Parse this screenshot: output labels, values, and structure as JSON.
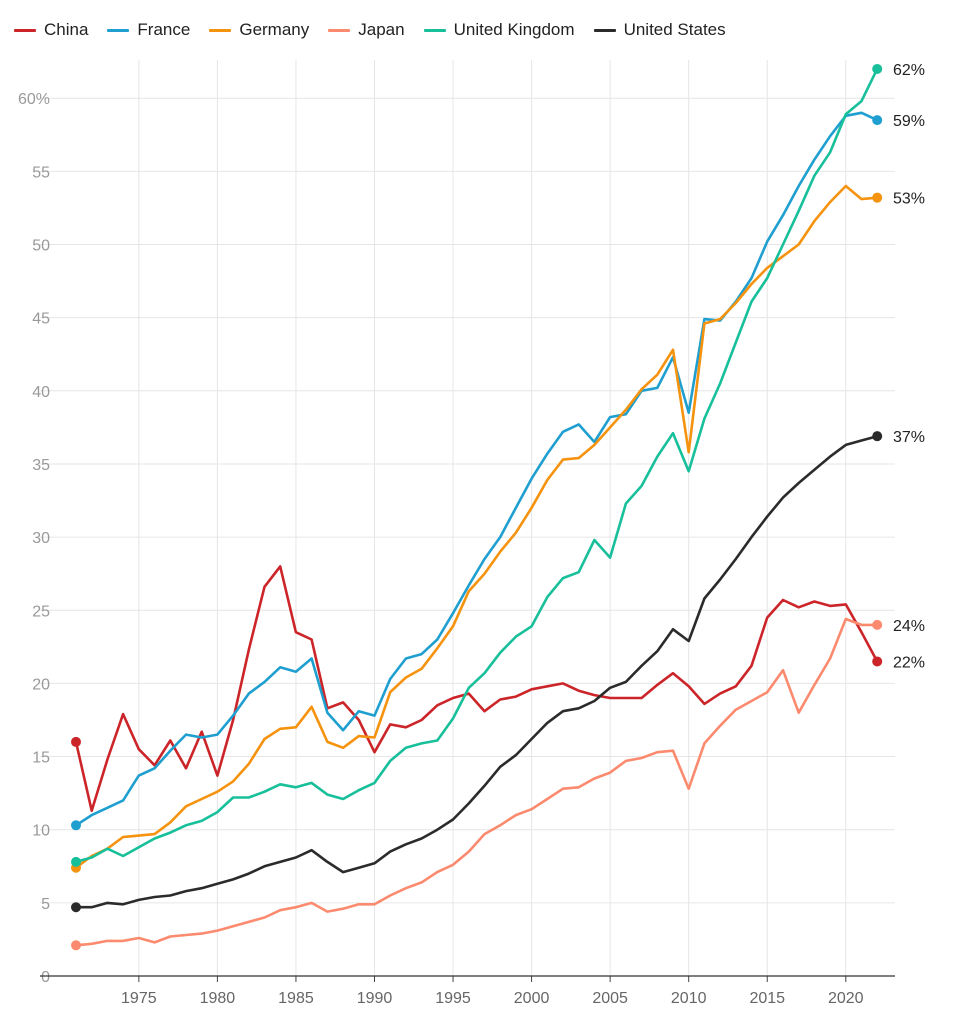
{
  "chart_data": {
    "type": "line",
    "title": "",
    "xlabel": "",
    "ylabel": "",
    "ylim": [
      0,
      60
    ],
    "xlim": [
      1971,
      2022
    ],
    "y_ticks": [
      "0",
      "5",
      "10",
      "15",
      "20",
      "25",
      "30",
      "35",
      "40",
      "45",
      "50",
      "55",
      "60%"
    ],
    "x_ticks": [
      "1975",
      "1980",
      "1985",
      "1990",
      "1995",
      "2000",
      "2005",
      "2010",
      "2015",
      "2020"
    ],
    "grid": true,
    "legend_position": "top-left",
    "x": [
      1971,
      1972,
      1973,
      1974,
      1975,
      1976,
      1977,
      1978,
      1979,
      1980,
      1981,
      1982,
      1983,
      1984,
      1985,
      1986,
      1987,
      1988,
      1989,
      1990,
      1991,
      1992,
      1993,
      1994,
      1995,
      1996,
      1997,
      1998,
      1999,
      2000,
      2001,
      2002,
      2003,
      2004,
      2005,
      2006,
      2007,
      2008,
      2009,
      2010,
      2011,
      2012,
      2013,
      2014,
      2015,
      2016,
      2017,
      2018,
      2019,
      2020,
      2021,
      2022
    ],
    "series": [
      {
        "name": "China",
        "color": "#cc2529",
        "end_label": "22%",
        "values": [
          16.0,
          11.3,
          14.8,
          17.9,
          15.5,
          14.4,
          16.1,
          14.2,
          16.7,
          13.7,
          17.5,
          22.3,
          26.6,
          28.0,
          23.5,
          23.0,
          18.3,
          18.7,
          17.5,
          15.3,
          17.2,
          17.0,
          17.5,
          18.5,
          19.0,
          19.3,
          18.1,
          18.9,
          19.1,
          19.6,
          19.8,
          20.0,
          19.5,
          19.2,
          19.0,
          19.0,
          19.0,
          19.9,
          20.7,
          19.8,
          18.6,
          19.3,
          19.8,
          21.2,
          24.5,
          25.7,
          25.2,
          25.6,
          25.3,
          25.4,
          23.5,
          21.5
        ]
      },
      {
        "name": "France",
        "color": "#1f9fd0",
        "end_label": "59%",
        "values": [
          10.3,
          11.0,
          11.5,
          12.0,
          13.7,
          14.2,
          15.4,
          16.5,
          16.3,
          16.5,
          17.8,
          19.3,
          20.1,
          21.1,
          20.8,
          21.7,
          18.0,
          16.8,
          18.1,
          17.8,
          20.3,
          21.7,
          22.0,
          23.0,
          24.8,
          26.7,
          28.5,
          30.0,
          32.0,
          34.0,
          35.7,
          37.2,
          37.7,
          36.5,
          38.2,
          38.4,
          40.0,
          40.2,
          42.3,
          38.5,
          44.9,
          44.8,
          46.1,
          47.7,
          50.2,
          52.0,
          54.0,
          55.8,
          57.4,
          58.8,
          59.0,
          58.5
        ]
      },
      {
        "name": "Germany",
        "color": "#f5930f",
        "end_label": "53%",
        "values": [
          7.4,
          8.2,
          8.7,
          9.5,
          9.6,
          9.7,
          10.5,
          11.6,
          12.1,
          12.6,
          13.3,
          14.5,
          16.2,
          16.9,
          17.0,
          18.4,
          16.0,
          15.6,
          16.4,
          16.3,
          19.4,
          20.4,
          21.0,
          22.4,
          23.9,
          26.3,
          27.5,
          29.0,
          30.3,
          32.0,
          33.9,
          35.3,
          35.4,
          36.3,
          37.5,
          38.7,
          40.1,
          41.1,
          42.8,
          35.8,
          44.6,
          44.9,
          46.0,
          47.3,
          48.4,
          49.2,
          50.0,
          51.6,
          52.9,
          54.0,
          53.1,
          53.2
        ]
      },
      {
        "name": "Japan",
        "color": "#fb8a6e",
        "end_label": "24%",
        "values": [
          2.1,
          2.2,
          2.4,
          2.4,
          2.6,
          2.3,
          2.7,
          2.8,
          2.9,
          3.1,
          3.4,
          3.7,
          4.0,
          4.5,
          4.7,
          5.0,
          4.4,
          4.6,
          4.9,
          4.9,
          5.5,
          6.0,
          6.4,
          7.1,
          7.6,
          8.5,
          9.7,
          10.3,
          11.0,
          11.4,
          12.1,
          12.8,
          12.9,
          13.5,
          13.9,
          14.7,
          14.9,
          15.3,
          15.4,
          12.8,
          15.9,
          17.1,
          18.2,
          18.8,
          19.4,
          20.9,
          18.0,
          19.9,
          21.7,
          24.4,
          24.0,
          24.0
        ]
      },
      {
        "name": "United Kingdom",
        "color": "#17bf9a",
        "end_label": "62%",
        "values": [
          7.8,
          8.1,
          8.7,
          8.2,
          8.8,
          9.4,
          9.8,
          10.3,
          10.6,
          11.2,
          12.2,
          12.2,
          12.6,
          13.1,
          12.9,
          13.2,
          12.4,
          12.1,
          12.7,
          13.2,
          14.7,
          15.6,
          15.9,
          16.1,
          17.6,
          19.7,
          20.7,
          22.1,
          23.2,
          23.9,
          25.9,
          27.2,
          27.6,
          29.8,
          28.6,
          32.3,
          33.5,
          35.5,
          37.1,
          34.5,
          38.1,
          40.5,
          43.3,
          46.1,
          47.7,
          50.0,
          52.3,
          54.7,
          56.3,
          58.9,
          59.8,
          62.0
        ]
      },
      {
        "name": "United States",
        "color": "#2b2b2b",
        "end_label": "37%",
        "values": [
          4.7,
          4.7,
          5.0,
          4.9,
          5.2,
          5.4,
          5.5,
          5.8,
          6.0,
          6.3,
          6.6,
          7.0,
          7.5,
          7.8,
          8.1,
          8.6,
          7.8,
          7.1,
          7.4,
          7.7,
          8.5,
          9.0,
          9.4,
          10.0,
          10.7,
          11.8,
          13.0,
          14.3,
          15.1,
          16.2,
          17.3,
          18.1,
          18.3,
          18.8,
          19.7,
          20.1,
          21.2,
          22.2,
          23.7,
          22.9,
          25.8,
          27.1,
          28.5,
          30.0,
          31.4,
          32.7,
          33.7,
          34.6,
          35.5,
          36.3,
          36.6,
          36.9
        ]
      }
    ]
  }
}
